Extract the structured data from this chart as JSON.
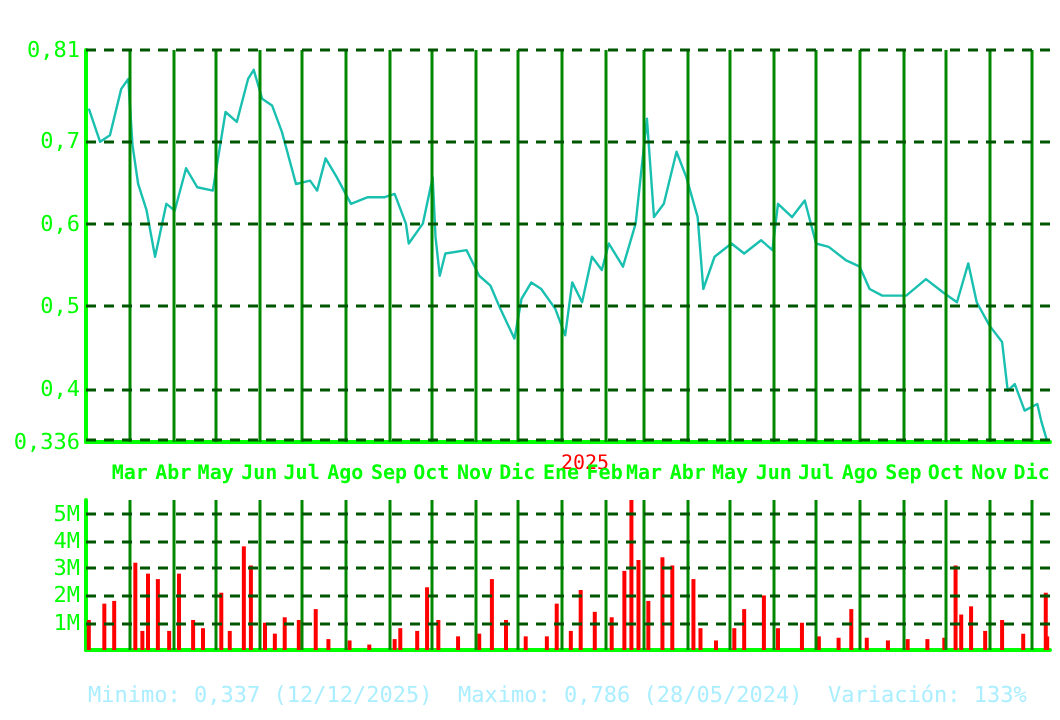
{
  "chart_data": [
    {
      "type": "line",
      "color": "#19c0b0",
      "grid": true,
      "line_style": "solid",
      "annotations": [
        "2025"
      ],
      "x": [
        "2024-02-01",
        "2024-02-09",
        "2024-02-16",
        "2024-02-24",
        "2024-02-29",
        "2024-03-03",
        "2024-03-07",
        "2024-03-13",
        "2024-03-19",
        "2024-03-22",
        "2024-03-27",
        "2024-04-02",
        "2024-04-10",
        "2024-04-18",
        "2024-04-29",
        "2024-05-08",
        "2024-05-16",
        "2024-05-24",
        "2024-05-28",
        "2024-06-03",
        "2024-06-10",
        "2024-06-17",
        "2024-06-27",
        "2024-07-07",
        "2024-07-12",
        "2024-07-18",
        "2024-07-26",
        "2024-08-05",
        "2024-08-17",
        "2024-08-29",
        "2024-09-05",
        "2024-09-13",
        "2024-09-15",
        "2024-09-25",
        "2024-10-02",
        "2024-10-04",
        "2024-10-07",
        "2024-10-11",
        "2024-10-26",
        "2024-11-04",
        "2024-11-12",
        "2024-11-19",
        "2024-11-29",
        "2024-12-04",
        "2024-12-11",
        "2024-12-18",
        "2024-12-28",
        "2025-01-04",
        "2025-01-09",
        "2025-01-16",
        "2025-01-23",
        "2025-01-30",
        "2025-02-04",
        "2025-02-14",
        "2025-02-23",
        "2025-03-03",
        "2025-03-08",
        "2025-03-15",
        "2025-03-24",
        "2025-03-31",
        "2025-04-08",
        "2025-04-12",
        "2025-04-20",
        "2025-05-02",
        "2025-05-11",
        "2025-05-23",
        "2025-05-31",
        "2025-06-04",
        "2025-06-14",
        "2025-06-23",
        "2025-07-01",
        "2025-07-10",
        "2025-07-22",
        "2025-08-01",
        "2025-08-08",
        "2025-08-17",
        "2025-09-03",
        "2025-09-17",
        "2025-09-29",
        "2025-10-09",
        "2025-10-17",
        "2025-10-23",
        "2025-11-01",
        "2025-11-10",
        "2025-11-14",
        "2025-11-19",
        "2025-11-26",
        "2025-12-05",
        "2025-12-08",
        "2025-12-12"
      ],
      "values": [
        0.739,
        0.699,
        0.707,
        0.763,
        0.775,
        0.695,
        0.648,
        0.616,
        0.56,
        0.584,
        0.624,
        0.616,
        0.667,
        0.644,
        0.64,
        0.735,
        0.723,
        0.775,
        0.786,
        0.751,
        0.743,
        0.711,
        0.648,
        0.652,
        0.64,
        0.679,
        0.656,
        0.624,
        0.632,
        0.632,
        0.636,
        0.6,
        0.576,
        0.6,
        0.656,
        0.584,
        0.537,
        0.564,
        0.568,
        0.537,
        0.525,
        0.497,
        0.461,
        0.509,
        0.529,
        0.521,
        0.497,
        0.465,
        0.529,
        0.505,
        0.56,
        0.544,
        0.576,
        0.548,
        0.6,
        0.727,
        0.608,
        0.624,
        0.687,
        0.656,
        0.608,
        0.521,
        0.56,
        0.576,
        0.564,
        0.58,
        0.568,
        0.624,
        0.608,
        0.628,
        0.576,
        0.572,
        0.556,
        0.548,
        0.521,
        0.513,
        0.513,
        0.533,
        0.517,
        0.505,
        0.552,
        0.505,
        0.477,
        0.457,
        0.398,
        0.406,
        0.374,
        0.382,
        0.36,
        0.337
      ],
      "xlim": [
        "2024-01-30",
        "2025-12-14"
      ],
      "xticks": [
        {
          "value": "2024-03-01",
          "label": "Mar"
        },
        {
          "value": "2024-04-01",
          "label": "Abr"
        },
        {
          "value": "2024-05-01",
          "label": "May"
        },
        {
          "value": "2024-06-01",
          "label": "Jun"
        },
        {
          "value": "2024-07-01",
          "label": "Jul"
        },
        {
          "value": "2024-08-01",
          "label": "Ago"
        },
        {
          "value": "2024-09-01",
          "label": "Sep"
        },
        {
          "value": "2024-10-01",
          "label": "Oct"
        },
        {
          "value": "2024-11-01",
          "label": "Nov"
        },
        {
          "value": "2024-12-01",
          "label": "Dic"
        },
        {
          "value": "2025-01-01",
          "label": "Ene"
        },
        {
          "value": "2025-02-01",
          "label": "Feb"
        },
        {
          "value": "2025-03-01",
          "label": "Mar"
        },
        {
          "value": "2025-04-01",
          "label": "Abr"
        },
        {
          "value": "2025-05-01",
          "label": "May"
        },
        {
          "value": "2025-06-01",
          "label": "Jun"
        },
        {
          "value": "2025-07-01",
          "label": "Jul"
        },
        {
          "value": "2025-08-01",
          "label": "Ago"
        },
        {
          "value": "2025-09-01",
          "label": "Sep"
        },
        {
          "value": "2025-10-01",
          "label": "Oct"
        },
        {
          "value": "2025-11-01",
          "label": "Nov"
        },
        {
          "value": "2025-12-01",
          "label": "Dic"
        }
      ],
      "ylim": [
        0.336,
        0.81
      ],
      "yticks": [
        {
          "value": 0.336,
          "label": "0,336"
        },
        {
          "value": 0.4,
          "label": "0,4"
        },
        {
          "value": 0.5,
          "label": "0,5"
        },
        {
          "value": 0.6,
          "label": "0,6"
        },
        {
          "value": 0.7,
          "label": "0,7"
        },
        {
          "value": 0.81,
          "label": "0,81"
        }
      ]
    },
    {
      "type": "bar",
      "color": "#ff0000",
      "grid": true,
      "tick_labels": "y",
      "x": [
        "2024-02-01",
        "2024-02-12",
        "2024-02-19",
        "2024-03-05",
        "2024-03-10",
        "2024-03-14",
        "2024-03-21",
        "2024-03-29",
        "2024-04-05",
        "2024-04-15",
        "2024-04-22",
        "2024-05-05",
        "2024-05-11",
        "2024-05-21",
        "2024-05-26",
        "2024-06-05",
        "2024-06-12",
        "2024-06-19",
        "2024-06-29",
        "2024-07-11",
        "2024-07-20",
        "2024-08-04",
        "2024-08-18",
        "2024-09-05",
        "2024-09-09",
        "2024-09-21",
        "2024-09-28",
        "2024-10-06",
        "2024-10-20",
        "2024-11-04",
        "2024-11-13",
        "2024-11-23",
        "2024-12-07",
        "2024-12-22",
        "2024-12-29",
        "2025-01-08",
        "2025-01-15",
        "2025-01-25",
        "2025-02-06",
        "2025-02-15",
        "2025-02-20",
        "2025-02-25",
        "2025-03-04",
        "2025-03-14",
        "2025-03-21",
        "2025-04-05",
        "2025-04-10",
        "2025-04-21",
        "2025-05-04",
        "2025-05-11",
        "2025-05-25",
        "2025-06-04",
        "2025-06-21",
        "2025-07-03",
        "2025-07-17",
        "2025-07-26",
        "2025-08-06",
        "2025-08-21",
        "2025-09-04",
        "2025-09-18",
        "2025-09-30",
        "2025-10-08",
        "2025-10-12",
        "2025-10-19",
        "2025-10-29",
        "2025-11-10",
        "2025-11-25",
        "2025-12-11",
        "2025-12-12"
      ],
      "values": [
        1.1,
        1.7,
        1.8,
        3.2,
        0.7,
        2.8,
        2.6,
        0.7,
        2.8,
        1.1,
        0.8,
        2.1,
        0.7,
        3.8,
        3.1,
        1.0,
        0.6,
        1.2,
        1.1,
        1.5,
        0.4,
        0.35,
        0.2,
        0.4,
        0.8,
        0.7,
        2.3,
        1.1,
        0.5,
        0.6,
        2.6,
        1.1,
        0.5,
        0.5,
        1.7,
        0.7,
        2.2,
        1.4,
        1.2,
        2.9,
        5.5,
        3.3,
        1.8,
        3.4,
        3.1,
        2.6,
        0.8,
        0.35,
        0.8,
        1.5,
        2.0,
        0.8,
        1.0,
        0.5,
        0.45,
        1.5,
        0.45,
        0.35,
        0.4,
        0.4,
        0.45,
        3.1,
        1.3,
        1.6,
        0.7,
        1.1,
        0.6,
        2.1,
        0.5
      ],
      "xlim": [
        "2024-01-30",
        "2025-12-14"
      ],
      "xticks": [
        {
          "value": "2024-03-01",
          "label": null
        },
        {
          "value": "2024-04-01",
          "label": null
        },
        {
          "value": "2024-05-01",
          "label": null
        },
        {
          "value": "2024-06-01",
          "label": null
        },
        {
          "value": "2024-07-01",
          "label": null
        },
        {
          "value": "2024-08-01",
          "label": null
        },
        {
          "value": "2024-09-01",
          "label": null
        },
        {
          "value": "2024-10-01",
          "label": null
        },
        {
          "value": "2024-11-01",
          "label": null
        },
        {
          "value": "2024-12-01",
          "label": null
        },
        {
          "value": "2025-01-01",
          "label": null
        },
        {
          "value": "2025-02-01",
          "label": null
        },
        {
          "value": "2025-03-01",
          "label": null
        },
        {
          "value": "2025-04-01",
          "label": null
        },
        {
          "value": "2025-05-01",
          "label": null
        },
        {
          "value": "2025-06-01",
          "label": null
        },
        {
          "value": "2025-07-01",
          "label": null
        },
        {
          "value": "2025-08-01",
          "label": null
        },
        {
          "value": "2025-09-01",
          "label": null
        },
        {
          "value": "2025-10-01",
          "label": null
        },
        {
          "value": "2025-11-01",
          "label": null
        },
        {
          "value": "2025-12-01",
          "label": null
        }
      ],
      "ylim": [
        0,
        5.5
      ],
      "yticks": [
        {
          "value": 1,
          "label": "1M"
        },
        {
          "value": 2,
          "label": "2M"
        },
        {
          "value": 3,
          "label": "3M"
        },
        {
          "value": 4,
          "label": "4M"
        },
        {
          "value": 5,
          "label": "5M"
        }
      ],
      "annotations": [
        "Minimo: 0,337 (12/12/2025)",
        "Maximo: 0,786 (28/05/2024)",
        "Variación: 133%"
      ]
    }
  ]
}
